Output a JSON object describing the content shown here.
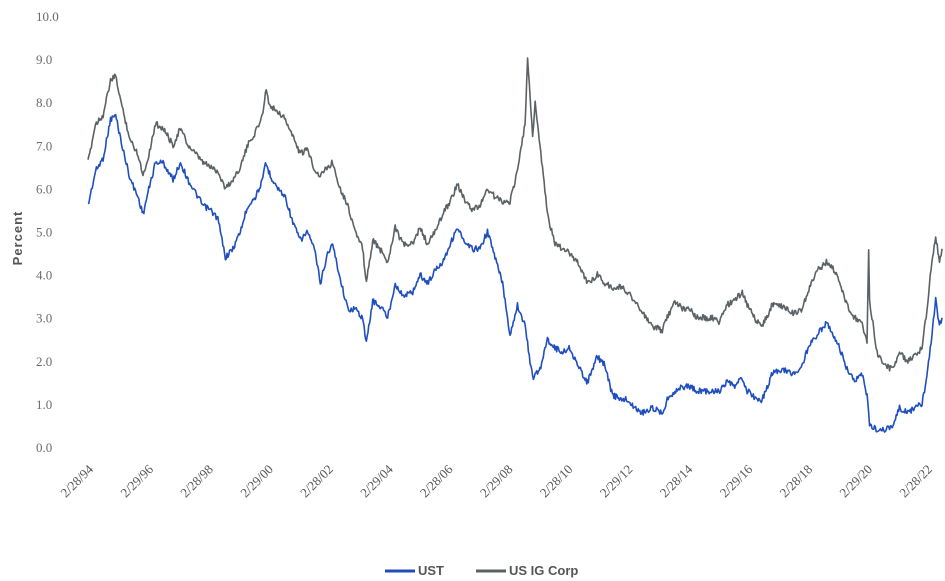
{
  "chart_data": {
    "type": "line",
    "title": "",
    "xlabel": "",
    "ylabel": "Percent",
    "ylim": [
      0,
      10
    ],
    "yticks": [
      "0.0",
      "1.0",
      "2.0",
      "3.0",
      "4.0",
      "5.0",
      "6.0",
      "7.0",
      "8.0",
      "9.0",
      "10.0"
    ],
    "xticks": [
      "2/28/94",
      "2/29/96",
      "2/28/98",
      "2/29/00",
      "2/28/02",
      "2/29/04",
      "2/28/06",
      "2/29/08",
      "2/28/10",
      "2/29/12",
      "2/28/14",
      "2/29/16",
      "2/28/18",
      "2/29/20",
      "2/28/22"
    ],
    "grid": false,
    "legend_position": "bottom-center",
    "series": [
      {
        "name": "UST",
        "color": "#1f4fbf",
        "points": [
          [
            "2/28/94",
            5.6
          ],
          [
            "5/31/94",
            6.4
          ],
          [
            "8/31/94",
            6.7
          ],
          [
            "11/30/94",
            7.6
          ],
          [
            "1/31/95",
            7.7
          ],
          [
            "4/30/95",
            6.9
          ],
          [
            "7/31/95",
            6.2
          ],
          [
            "10/31/95",
            5.8
          ],
          [
            "12/31/95",
            5.4
          ],
          [
            "2/29/96",
            5.9
          ],
          [
            "5/31/96",
            6.6
          ],
          [
            "8/31/96",
            6.6
          ],
          [
            "12/31/96",
            6.2
          ],
          [
            "3/31/97",
            6.6
          ],
          [
            "6/30/97",
            6.2
          ],
          [
            "9/30/97",
            5.9
          ],
          [
            "12/31/97",
            5.6
          ],
          [
            "3/31/98",
            5.5
          ],
          [
            "6/30/98",
            5.3
          ],
          [
            "9/30/98",
            4.4
          ],
          [
            "12/31/98",
            4.6
          ],
          [
            "3/31/99",
            5.0
          ],
          [
            "6/30/99",
            5.6
          ],
          [
            "9/30/99",
            5.8
          ],
          [
            "12/31/99",
            6.2
          ],
          [
            "1/31/00",
            6.6
          ],
          [
            "3/31/00",
            6.3
          ],
          [
            "6/30/00",
            6.0
          ],
          [
            "9/30/00",
            5.8
          ],
          [
            "12/31/00",
            5.2
          ],
          [
            "3/31/01",
            4.8
          ],
          [
            "6/30/01",
            5.0
          ],
          [
            "9/30/01",
            4.5
          ],
          [
            "11/30/01",
            3.8
          ],
          [
            "2/28/02",
            4.5
          ],
          [
            "4/30/02",
            4.7
          ],
          [
            "7/31/02",
            3.9
          ],
          [
            "10/31/02",
            3.2
          ],
          [
            "1/31/03",
            3.2
          ],
          [
            "4/30/03",
            3.0
          ],
          [
            "6/15/03",
            2.4
          ],
          [
            "8/31/03",
            3.4
          ],
          [
            "12/31/03",
            3.2
          ],
          [
            "2/29/04",
            3.0
          ],
          [
            "5/31/04",
            3.8
          ],
          [
            "8/31/04",
            3.5
          ],
          [
            "12/31/04",
            3.6
          ],
          [
            "3/31/05",
            4.0
          ],
          [
            "6/30/05",
            3.8
          ],
          [
            "9/30/05",
            4.1
          ],
          [
            "12/31/05",
            4.3
          ],
          [
            "3/31/06",
            4.7
          ],
          [
            "6/30/06",
            5.1
          ],
          [
            "9/30/06",
            4.7
          ],
          [
            "12/31/06",
            4.6
          ],
          [
            "3/31/07",
            4.6
          ],
          [
            "6/30/07",
            5.0
          ],
          [
            "9/30/07",
            4.4
          ],
          [
            "12/31/07",
            3.8
          ],
          [
            "3/31/08",
            2.6
          ],
          [
            "6/30/08",
            3.3
          ],
          [
            "9/30/08",
            2.8
          ],
          [
            "12/31/08",
            1.6
          ],
          [
            "3/31/09",
            1.8
          ],
          [
            "6/30/09",
            2.5
          ],
          [
            "9/30/09",
            2.3
          ],
          [
            "12/31/09",
            2.2
          ],
          [
            "3/31/10",
            2.3
          ],
          [
            "6/30/10",
            1.9
          ],
          [
            "10/31/10",
            1.5
          ],
          [
            "2/28/11",
            2.1
          ],
          [
            "5/31/11",
            1.9
          ],
          [
            "8/31/11",
            1.2
          ],
          [
            "12/31/11",
            1.1
          ],
          [
            "2/29/12",
            1.1
          ],
          [
            "5/31/12",
            0.9
          ],
          [
            "8/31/12",
            0.8
          ],
          [
            "12/31/12",
            0.9
          ],
          [
            "4/30/13",
            0.8
          ],
          [
            "6/30/13",
            1.1
          ],
          [
            "9/30/13",
            1.3
          ],
          [
            "12/31/13",
            1.4
          ],
          [
            "3/31/14",
            1.4
          ],
          [
            "6/30/14",
            1.3
          ],
          [
            "12/31/14",
            1.3
          ],
          [
            "3/31/15",
            1.3
          ],
          [
            "6/30/15",
            1.5
          ],
          [
            "9/30/15",
            1.4
          ],
          [
            "12/31/15",
            1.6
          ],
          [
            "2/29/16",
            1.3
          ],
          [
            "6/30/16",
            1.1
          ],
          [
            "8/31/16",
            1.1
          ],
          [
            "12/31/16",
            1.7
          ],
          [
            "3/31/17",
            1.8
          ],
          [
            "9/30/17",
            1.7
          ],
          [
            "12/31/17",
            1.9
          ],
          [
            "3/31/18",
            2.4
          ],
          [
            "6/30/18",
            2.6
          ],
          [
            "10/31/18",
            2.9
          ],
          [
            "12/31/18",
            2.6
          ],
          [
            "3/31/19",
            2.3
          ],
          [
            "6/30/19",
            1.8
          ],
          [
            "9/30/19",
            1.5
          ],
          [
            "12/31/19",
            1.7
          ],
          [
            "2/29/20",
            1.2
          ],
          [
            "3/31/20",
            0.5
          ],
          [
            "6/30/20",
            0.4
          ],
          [
            "9/30/20",
            0.4
          ],
          [
            "12/31/20",
            0.5
          ],
          [
            "3/31/21",
            0.9
          ],
          [
            "6/30/21",
            0.8
          ],
          [
            "9/30/21",
            0.9
          ],
          [
            "12/31/21",
            1.0
          ],
          [
            "2/28/22",
            1.6
          ],
          [
            "4/30/22",
            2.6
          ],
          [
            "6/15/22",
            3.4
          ],
          [
            "7/31/22",
            2.8
          ],
          [
            "8/31/22",
            3.0
          ]
        ]
      },
      {
        "name": "US IG Corp",
        "color": "#5b6266",
        "points": [
          [
            "2/28/94",
            6.6
          ],
          [
            "5/31/94",
            7.5
          ],
          [
            "8/31/94",
            7.7
          ],
          [
            "11/30/94",
            8.5
          ],
          [
            "1/31/95",
            8.6
          ],
          [
            "4/30/95",
            7.8
          ],
          [
            "7/31/95",
            7.1
          ],
          [
            "10/31/95",
            6.8
          ],
          [
            "12/31/95",
            6.3
          ],
          [
            "2/29/96",
            6.7
          ],
          [
            "5/31/96",
            7.5
          ],
          [
            "8/31/96",
            7.4
          ],
          [
            "12/31/96",
            7.0
          ],
          [
            "3/31/97",
            7.4
          ],
          [
            "6/30/97",
            7.0
          ],
          [
            "9/30/97",
            6.8
          ],
          [
            "12/31/97",
            6.6
          ],
          [
            "3/31/98",
            6.5
          ],
          [
            "6/30/98",
            6.4
          ],
          [
            "9/30/98",
            6.0
          ],
          [
            "12/31/98",
            6.2
          ],
          [
            "3/31/99",
            6.5
          ],
          [
            "6/30/99",
            7.0
          ],
          [
            "9/30/99",
            7.3
          ],
          [
            "12/31/99",
            7.7
          ],
          [
            "1/31/00",
            8.3
          ],
          [
            "3/31/00",
            7.9
          ],
          [
            "6/30/00",
            7.8
          ],
          [
            "9/30/00",
            7.6
          ],
          [
            "12/31/00",
            7.2
          ],
          [
            "3/31/01",
            6.8
          ],
          [
            "6/30/01",
            6.9
          ],
          [
            "9/30/01",
            6.4
          ],
          [
            "11/30/01",
            6.3
          ],
          [
            "2/28/02",
            6.5
          ],
          [
            "4/30/02",
            6.6
          ],
          [
            "7/31/02",
            6.0
          ],
          [
            "10/31/02",
            5.6
          ],
          [
            "1/31/03",
            5.0
          ],
          [
            "4/30/03",
            4.6
          ],
          [
            "6/15/03",
            3.8
          ],
          [
            "8/31/03",
            4.8
          ],
          [
            "12/31/03",
            4.5
          ],
          [
            "2/29/04",
            4.3
          ],
          [
            "5/31/04",
            5.1
          ],
          [
            "8/31/04",
            4.7
          ],
          [
            "12/31/04",
            4.7
          ],
          [
            "3/31/05",
            5.1
          ],
          [
            "6/30/05",
            4.7
          ],
          [
            "9/30/05",
            5.0
          ],
          [
            "12/31/05",
            5.4
          ],
          [
            "3/31/06",
            5.7
          ],
          [
            "6/30/06",
            6.1
          ],
          [
            "9/30/06",
            5.7
          ],
          [
            "12/31/06",
            5.5
          ],
          [
            "3/31/07",
            5.6
          ],
          [
            "6/30/07",
            6.0
          ],
          [
            "9/30/07",
            5.8
          ],
          [
            "12/31/07",
            5.7
          ],
          [
            "3/31/08",
            5.7
          ],
          [
            "6/30/08",
            6.4
          ],
          [
            "9/30/08",
            7.5
          ],
          [
            "10/31/08",
            9.0
          ],
          [
            "12/31/08",
            7.2
          ],
          [
            "1/31/09",
            8.0
          ],
          [
            "3/31/09",
            7.0
          ],
          [
            "6/30/09",
            5.4
          ],
          [
            "9/30/09",
            4.7
          ],
          [
            "12/31/09",
            4.6
          ],
          [
            "3/31/10",
            4.5
          ],
          [
            "6/30/10",
            4.3
          ],
          [
            "10/31/10",
            3.8
          ],
          [
            "2/28/11",
            4.0
          ],
          [
            "5/31/11",
            3.8
          ],
          [
            "8/31/11",
            3.7
          ],
          [
            "12/31/11",
            3.7
          ],
          [
            "2/29/12",
            3.6
          ],
          [
            "5/31/12",
            3.4
          ],
          [
            "8/31/12",
            3.1
          ],
          [
            "12/31/12",
            2.8
          ],
          [
            "4/30/13",
            2.7
          ],
          [
            "6/30/13",
            3.0
          ],
          [
            "9/30/13",
            3.4
          ],
          [
            "12/31/13",
            3.2
          ],
          [
            "3/31/14",
            3.2
          ],
          [
            "6/30/14",
            3.0
          ],
          [
            "12/31/14",
            3.0
          ],
          [
            "3/31/15",
            2.9
          ],
          [
            "6/30/15",
            3.3
          ],
          [
            "9/30/15",
            3.4
          ],
          [
            "12/31/15",
            3.6
          ],
          [
            "2/29/16",
            3.3
          ],
          [
            "6/30/16",
            2.9
          ],
          [
            "8/31/16",
            2.8
          ],
          [
            "12/31/16",
            3.3
          ],
          [
            "3/31/17",
            3.3
          ],
          [
            "9/30/17",
            3.1
          ],
          [
            "12/31/17",
            3.2
          ],
          [
            "3/31/18",
            3.7
          ],
          [
            "6/30/18",
            4.1
          ],
          [
            "10/31/18",
            4.3
          ],
          [
            "12/31/18",
            4.2
          ],
          [
            "3/31/19",
            3.8
          ],
          [
            "6/30/19",
            3.3
          ],
          [
            "9/30/19",
            3.0
          ],
          [
            "12/31/19",
            2.9
          ],
          [
            "2/29/20",
            2.4
          ],
          [
            "3/20/20",
            4.6
          ],
          [
            "3/31/20",
            3.4
          ],
          [
            "6/30/20",
            2.2
          ],
          [
            "9/30/20",
            1.9
          ],
          [
            "12/31/20",
            1.8
          ],
          [
            "3/31/21",
            2.2
          ],
          [
            "6/30/21",
            2.0
          ],
          [
            "9/30/21",
            2.1
          ],
          [
            "12/31/21",
            2.3
          ],
          [
            "2/28/22",
            3.2
          ],
          [
            "4/30/22",
            4.3
          ],
          [
            "6/15/22",
            4.9
          ],
          [
            "7/31/22",
            4.3
          ],
          [
            "8/31/22",
            4.6
          ]
        ]
      }
    ]
  }
}
